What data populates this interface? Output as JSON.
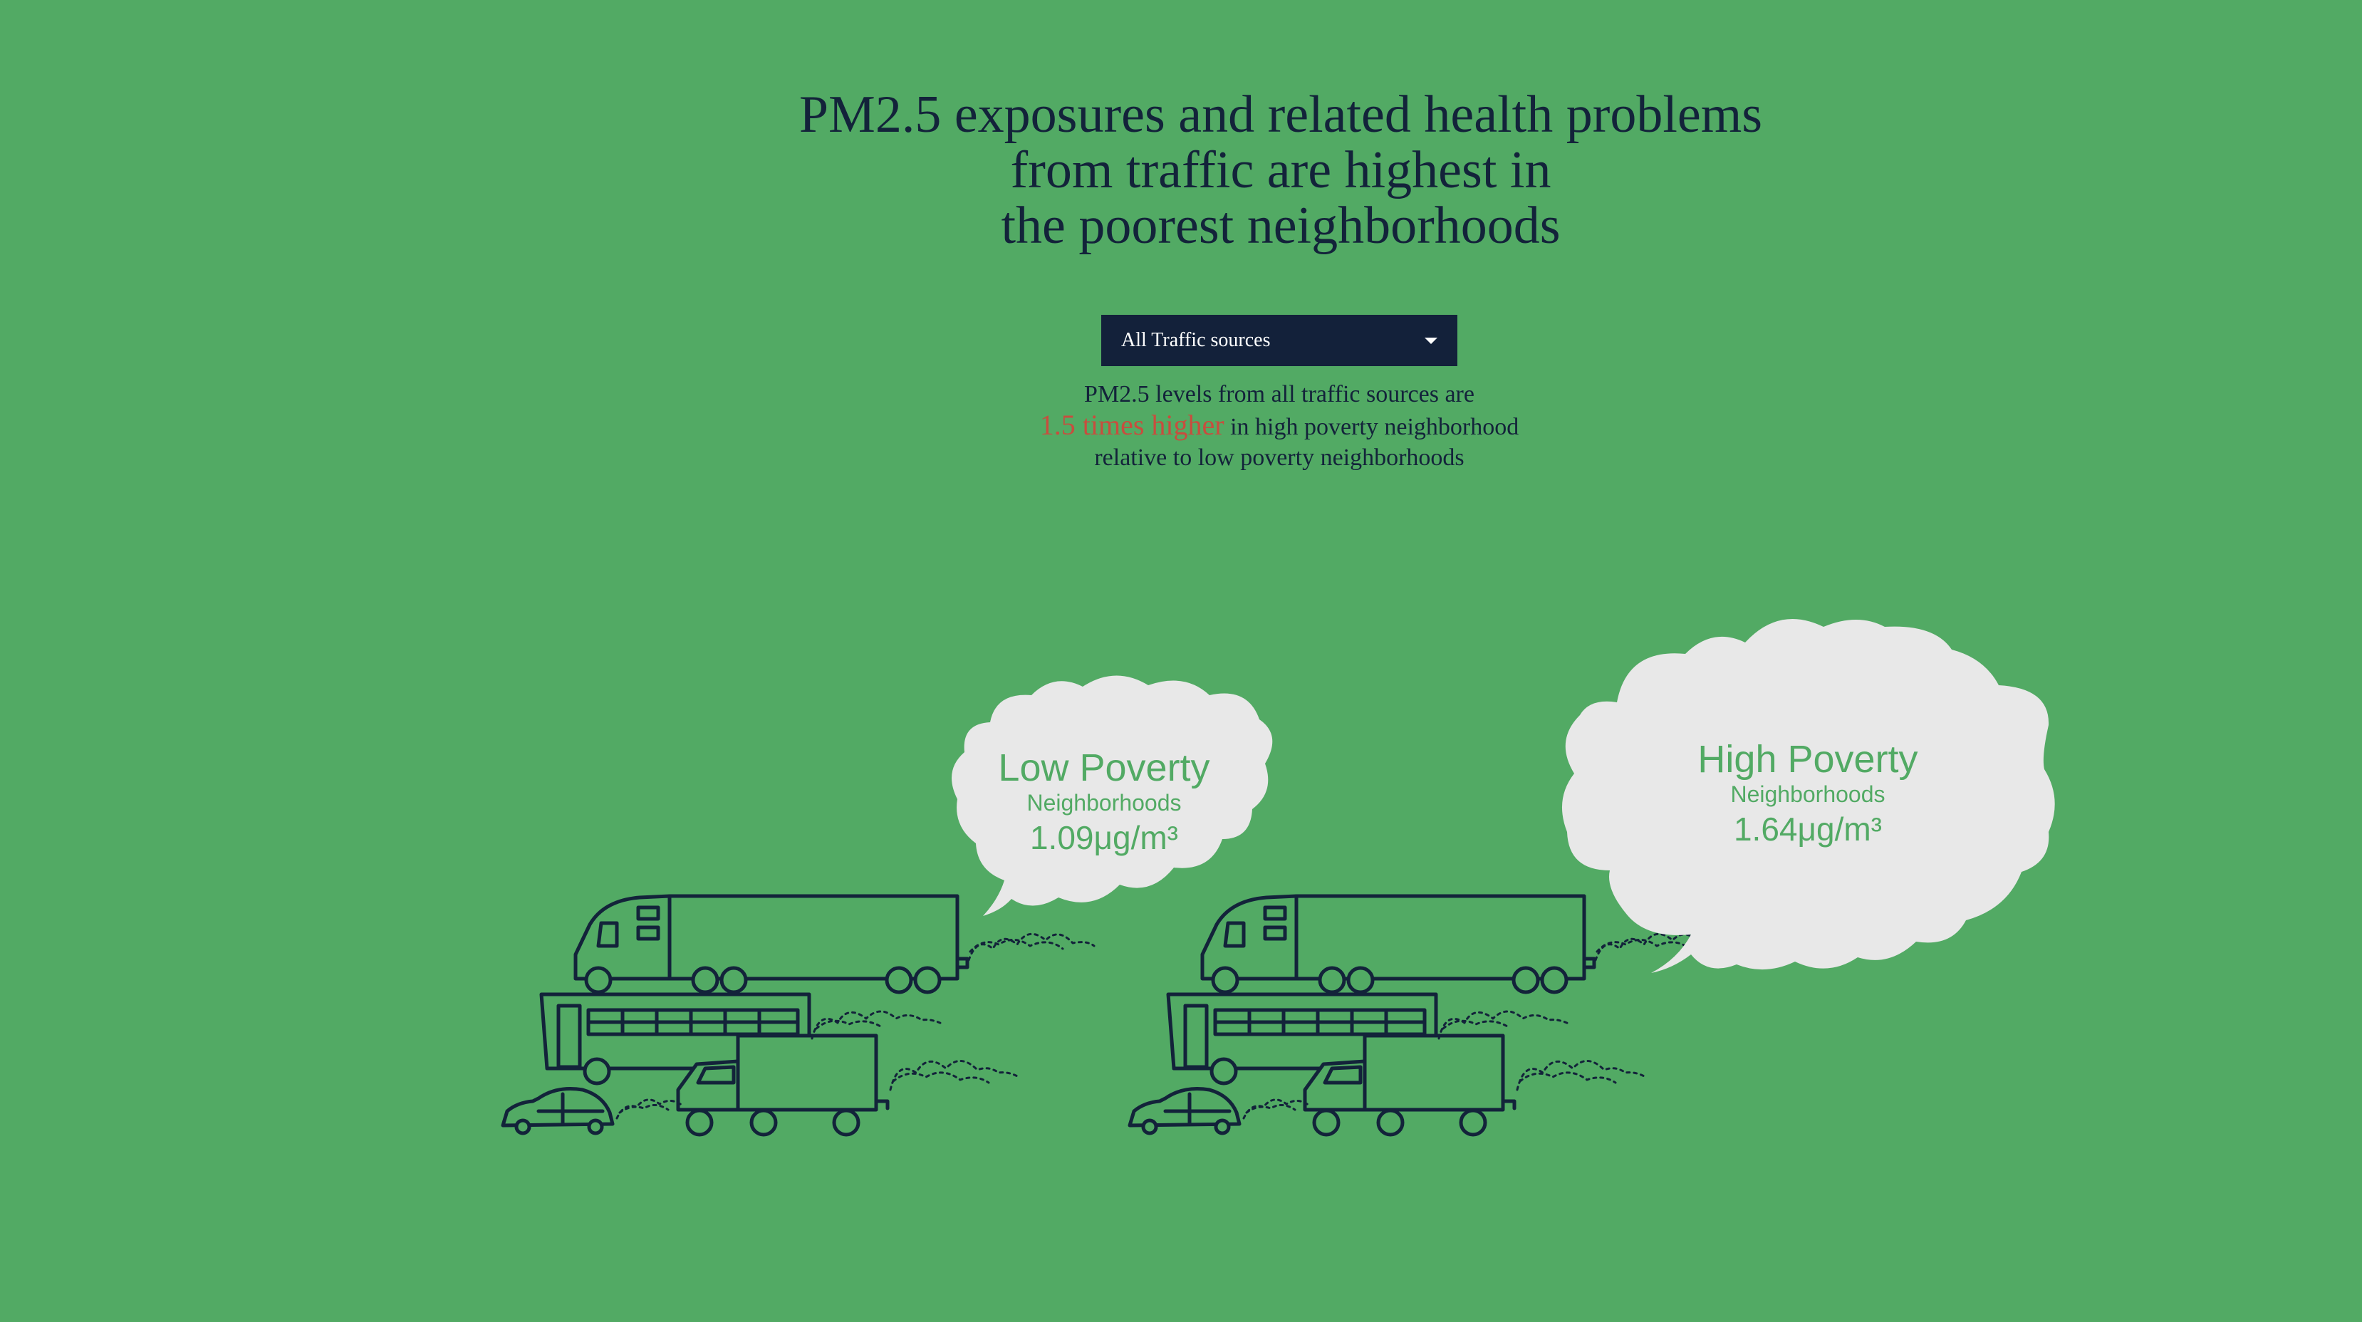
{
  "headline": {
    "lines": [
      "PM2.5 exposures and related health problems",
      "from traffic are highest in",
      "the poorest neighborhoods"
    ]
  },
  "dropdown": {
    "selected": "All Traffic sources",
    "icon": "caret-down-icon"
  },
  "summary": {
    "line1": "PM2.5 levels from all traffic sources are",
    "highlight": "1.5 times higher",
    "line2_rest": " in high poverty neighborhood",
    "line3": "relative to low poverty neighborhoods"
  },
  "clouds": {
    "low": {
      "title": "Low Poverty",
      "subtitle": "Neighborhoods",
      "value": "1.09μg/m³"
    },
    "high": {
      "title": "High Poverty",
      "subtitle": "Neighborhoods",
      "value": "1.64μg/m³"
    }
  },
  "colors": {
    "background": "#52aa64",
    "ink": "#13233a",
    "highlight": "#c84d3e",
    "cloud": "#e8e8e8",
    "dropdown": "#13213a"
  }
}
